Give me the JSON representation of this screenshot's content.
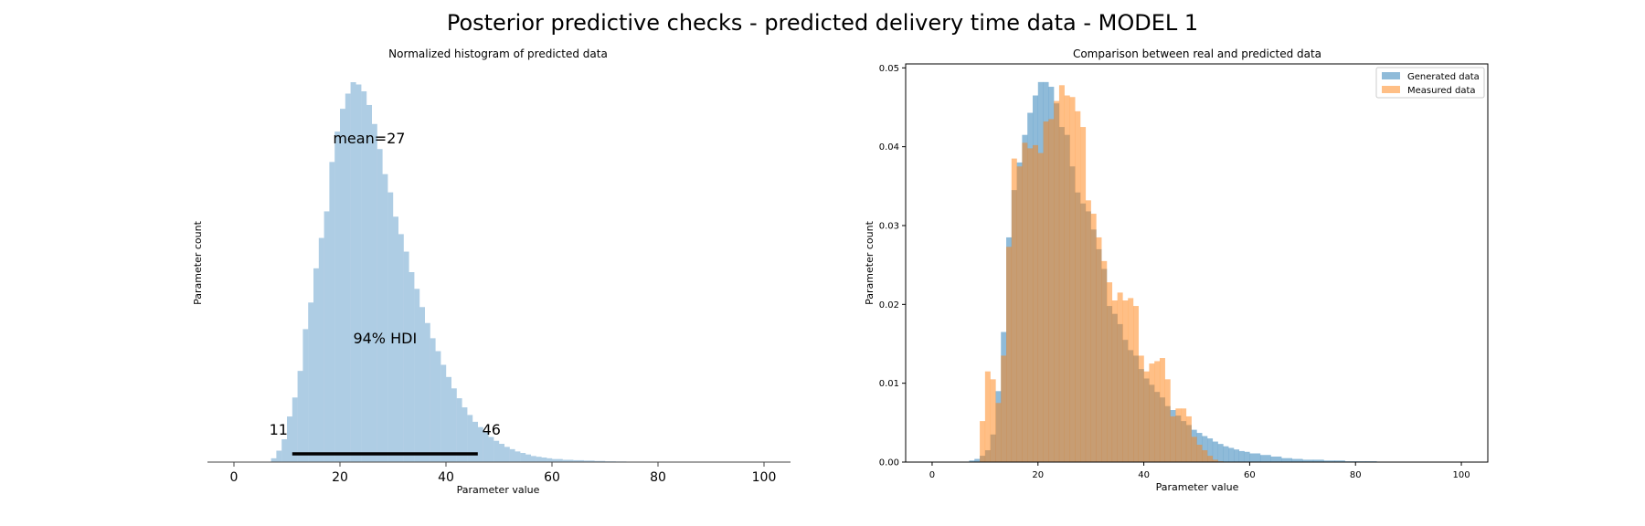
{
  "figure": {
    "suptitle": "Posterior predictive checks - predicted delivery time data - MODEL 1"
  },
  "chart_data": [
    {
      "type": "bar",
      "title": "Normalized histogram of predicted data",
      "xlabel": "Parameter value",
      "ylabel": "Parameter count",
      "xlim": [
        -5,
        105
      ],
      "xticks": [
        0,
        20,
        40,
        60,
        80,
        100
      ],
      "yticks_visible": false,
      "bin_width": 1,
      "color": "#aecde4",
      "series": [
        {
          "x": [
            7,
            8,
            9,
            10,
            11,
            12,
            13,
            14,
            15,
            16,
            17,
            18,
            19,
            20,
            21,
            22,
            23,
            24,
            25,
            26,
            27,
            28,
            29,
            30,
            31,
            32,
            33,
            34,
            35,
            36,
            37,
            38,
            39,
            40,
            41,
            42,
            43,
            44,
            45,
            46,
            47,
            48,
            49,
            50,
            51,
            52,
            53,
            54,
            55,
            56,
            57,
            58,
            59,
            60,
            62,
            64,
            66,
            68,
            70,
            72,
            74,
            76,
            78,
            80,
            82,
            84,
            86,
            88
          ],
          "values": [
            0.0005,
            0.0015,
            0.003,
            0.006,
            0.0085,
            0.012,
            0.0175,
            0.021,
            0.0255,
            0.0295,
            0.033,
            0.0395,
            0.0435,
            0.0465,
            0.0485,
            0.05,
            0.0497,
            0.0488,
            0.047,
            0.0445,
            0.0412,
            0.0379,
            0.0355,
            0.0323,
            0.03,
            0.0277,
            0.025,
            0.0228,
            0.0204,
            0.0183,
            0.0163,
            0.0146,
            0.0128,
            0.0112,
            0.0097,
            0.0084,
            0.0072,
            0.0062,
            0.0053,
            0.0046,
            0.0039,
            0.0033,
            0.0028,
            0.0024,
            0.002,
            0.0017,
            0.0014,
            0.0012,
            0.001,
            0.0008,
            0.0007,
            0.0006,
            0.0005,
            0.0004,
            0.0003,
            0.00025,
            0.0002,
            0.00015,
            0.0001,
            8e-05,
            6e-05,
            5e-05,
            4e-05,
            3e-05,
            2e-05,
            2e-05,
            1e-05,
            1e-05
          ]
        }
      ],
      "annotations": {
        "mean_label": "mean=27",
        "hdi_label": "94% HDI",
        "hdi_low": 11,
        "hdi_high": 46,
        "hdi_low_label": "11",
        "hdi_high_label": "46"
      }
    },
    {
      "type": "bar",
      "title": "Comparison between real and predicted data",
      "xlabel": "Parameter value",
      "ylabel": "Parameter count",
      "xlim": [
        -5,
        105
      ],
      "ylim": [
        0,
        0.0505
      ],
      "xticks": [
        0,
        20,
        40,
        60,
        80,
        100
      ],
      "yticks": [
        "0.00",
        "0.01",
        "0.02",
        "0.03",
        "0.04",
        "0.05"
      ],
      "bin_width": 1,
      "legend": "top-right",
      "series": [
        {
          "name": "Generated data",
          "color": "#1f77b4",
          "x": [
            7,
            8,
            9,
            10,
            11,
            12,
            13,
            14,
            15,
            16,
            17,
            18,
            19,
            20,
            21,
            22,
            23,
            24,
            25,
            26,
            27,
            28,
            29,
            30,
            31,
            32,
            33,
            34,
            35,
            36,
            37,
            38,
            39,
            40,
            41,
            42,
            43,
            44,
            45,
            46,
            47,
            48,
            49,
            50,
            51,
            52,
            53,
            54,
            55,
            56,
            57,
            58,
            59,
            60,
            62,
            64,
            66,
            68,
            70,
            72,
            74,
            76,
            78,
            80,
            82,
            84,
            86,
            88
          ],
          "values": [
            0.0002,
            0.0004,
            0.0008,
            0.0015,
            0.0035,
            0.009,
            0.0165,
            0.0285,
            0.0345,
            0.038,
            0.0415,
            0.0443,
            0.0465,
            0.0482,
            0.0482,
            0.0476,
            0.0455,
            0.0425,
            0.0415,
            0.0375,
            0.0342,
            0.0328,
            0.0318,
            0.0295,
            0.027,
            0.0245,
            0.0198,
            0.0188,
            0.0175,
            0.0155,
            0.0142,
            0.0135,
            0.0118,
            0.0106,
            0.0098,
            0.0089,
            0.0082,
            0.0071,
            0.0066,
            0.0059,
            0.0052,
            0.0047,
            0.0041,
            0.0037,
            0.0033,
            0.003,
            0.0026,
            0.0023,
            0.002,
            0.0018,
            0.0016,
            0.0014,
            0.0013,
            0.0011,
            0.0009,
            0.0007,
            0.0005,
            0.0004,
            0.0003,
            0.0003,
            0.0002,
            0.0002,
            0.0001,
            0.0001,
            0.0001,
            5e-05,
            5e-05,
            3e-05
          ]
        },
        {
          "name": "Measured data",
          "color": "#ff7f0e",
          "x": [
            9,
            10,
            11,
            12,
            13,
            14,
            15,
            16,
            17,
            18,
            19,
            20,
            21,
            22,
            23,
            24,
            25,
            26,
            27,
            28,
            29,
            30,
            31,
            32,
            33,
            34,
            35,
            36,
            37,
            38,
            39,
            40,
            41,
            42,
            43,
            44,
            45,
            46,
            47,
            48,
            49,
            50,
            51,
            52,
            53,
            54
          ],
          "values": [
            0.0052,
            0.0115,
            0.0105,
            0.0075,
            0.0135,
            0.0273,
            0.0385,
            0.0375,
            0.0405,
            0.0398,
            0.0402,
            0.0392,
            0.0432,
            0.0435,
            0.0458,
            0.0478,
            0.0465,
            0.0463,
            0.0445,
            0.0425,
            0.0332,
            0.0315,
            0.0285,
            0.0255,
            0.0228,
            0.0205,
            0.0215,
            0.0205,
            0.0208,
            0.0198,
            0.0135,
            0.0115,
            0.0125,
            0.0128,
            0.0132,
            0.0105,
            0.0058,
            0.0068,
            0.0068,
            0.0058,
            0.0032,
            0.0022,
            0.0015,
            0.0008,
            0.0003,
            0.0001
          ]
        }
      ]
    }
  ]
}
